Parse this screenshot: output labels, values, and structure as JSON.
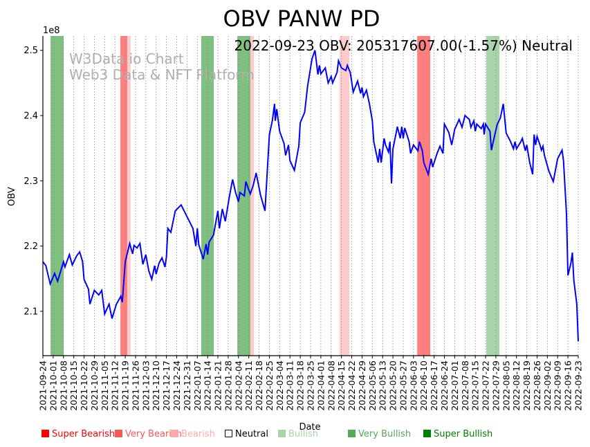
{
  "chart_data": {
    "type": "line",
    "title": "OBV PANW PD",
    "annotation": "2022-09-23 OBV: 205317607.00(-1.57%) Neutral",
    "watermark": [
      "W3Data.io Chart",
      "Web3 Data & NFT Platform"
    ],
    "xlabel": "Date",
    "ylabel": "OBV",
    "y_multiplier": "1e8",
    "ylim": [
      2.032,
      2.522
    ],
    "x_start_date": "2021-09-24",
    "x_unit": "days since 2021-09-24",
    "xlim": [
      0,
      364
    ],
    "yticks": [
      "2.1",
      "2.2",
      "2.3",
      "2.4",
      "2.5"
    ],
    "xticks": [
      "2021-09-24",
      "2021-10-01",
      "2021-10-08",
      "2021-10-15",
      "2021-10-22",
      "2021-10-29",
      "2021-11-05",
      "2021-11-12",
      "2021-11-19",
      "2021-11-26",
      "2021-12-03",
      "2021-12-10",
      "2021-12-17",
      "2021-12-24",
      "2021-12-31",
      "2022-01-07",
      "2022-01-14",
      "2022-01-21",
      "2022-01-28",
      "2022-02-04",
      "2022-02-11",
      "2022-02-18",
      "2022-02-25",
      "2022-03-04",
      "2022-03-11",
      "2022-03-18",
      "2022-03-25",
      "2022-04-01",
      "2022-04-08",
      "2022-04-15",
      "2022-04-22",
      "2022-04-29",
      "2022-05-06",
      "2022-05-13",
      "2022-05-20",
      "2022-05-27",
      "2022-06-03",
      "2022-06-10",
      "2022-06-17",
      "2022-06-24",
      "2022-07-01",
      "2022-07-08",
      "2022-07-15",
      "2022-07-22",
      "2022-07-29",
      "2022-08-05",
      "2022-08-12",
      "2022-08-19",
      "2022-08-26",
      "2022-09-02",
      "2022-09-09",
      "2022-09-16",
      "2022-09-23"
    ],
    "grid": "vertical dotted",
    "series": [
      {
        "name": "OBV",
        "color": "#0000ff",
        "points": [
          [
            0,
            2.176
          ],
          [
            2,
            2.17
          ],
          [
            5,
            2.142
          ],
          [
            8,
            2.158
          ],
          [
            10,
            2.146
          ],
          [
            14,
            2.176
          ],
          [
            15,
            2.168
          ],
          [
            18,
            2.187
          ],
          [
            20,
            2.171
          ],
          [
            23,
            2.185
          ],
          [
            25,
            2.191
          ],
          [
            27,
            2.176
          ],
          [
            28,
            2.149
          ],
          [
            31,
            2.134
          ],
          [
            32,
            2.111
          ],
          [
            35,
            2.132
          ],
          [
            38,
            2.125
          ],
          [
            40,
            2.132
          ],
          [
            42,
            2.096
          ],
          [
            45,
            2.111
          ],
          [
            47,
            2.089
          ],
          [
            50,
            2.111
          ],
          [
            53,
            2.123
          ],
          [
            54,
            2.114
          ],
          [
            56,
            2.176
          ],
          [
            59,
            2.204
          ],
          [
            61,
            2.188
          ],
          [
            62,
            2.201
          ],
          [
            64,
            2.197
          ],
          [
            66,
            2.204
          ],
          [
            68,
            2.172
          ],
          [
            70,
            2.187
          ],
          [
            72,
            2.162
          ],
          [
            74,
            2.149
          ],
          [
            76,
            2.17
          ],
          [
            77,
            2.157
          ],
          [
            79,
            2.174
          ],
          [
            81,
            2.182
          ],
          [
            83,
            2.168
          ],
          [
            84,
            2.183
          ],
          [
            85,
            2.227
          ],
          [
            87,
            2.221
          ],
          [
            90,
            2.254
          ],
          [
            94,
            2.263
          ],
          [
            98,
            2.245
          ],
          [
            102,
            2.227
          ],
          [
            104,
            2.2
          ],
          [
            105,
            2.227
          ],
          [
            106,
            2.202
          ],
          [
            109,
            2.18
          ],
          [
            111,
            2.203
          ],
          [
            112,
            2.187
          ],
          [
            113,
            2.206
          ],
          [
            116,
            2.217
          ],
          [
            119,
            2.254
          ],
          [
            120,
            2.227
          ],
          [
            122,
            2.257
          ],
          [
            124,
            2.238
          ],
          [
            127,
            2.278
          ],
          [
            129,
            2.302
          ],
          [
            131,
            2.282
          ],
          [
            133,
            2.268
          ],
          [
            134,
            2.282
          ],
          [
            137,
            2.277
          ],
          [
            138,
            2.299
          ],
          [
            141,
            2.28
          ],
          [
            143,
            2.293
          ],
          [
            145,
            2.312
          ],
          [
            148,
            2.278
          ],
          [
            151,
            2.254
          ],
          [
            154,
            2.371
          ],
          [
            156,
            2.392
          ],
          [
            157.5,
            2.418
          ],
          [
            158,
            2.392
          ],
          [
            159,
            2.41
          ],
          [
            161,
            2.376
          ],
          [
            164,
            2.357
          ],
          [
            165,
            2.339
          ],
          [
            167,
            2.355
          ],
          [
            168,
            2.331
          ],
          [
            171,
            2.316
          ],
          [
            174,
            2.353
          ],
          [
            175,
            2.389
          ],
          [
            178,
            2.405
          ],
          [
            180,
            2.445
          ],
          [
            183,
            2.487
          ],
          [
            185,
            2.5
          ],
          [
            187,
            2.463
          ],
          [
            188,
            2.477
          ],
          [
            189,
            2.464
          ],
          [
            192,
            2.473
          ],
          [
            194,
            2.45
          ],
          [
            196,
            2.46
          ],
          [
            197,
            2.45
          ],
          [
            200,
            2.466
          ],
          [
            201,
            2.484
          ],
          [
            203,
            2.473
          ],
          [
            206,
            2.469
          ],
          [
            207,
            2.477
          ],
          [
            209,
            2.466
          ],
          [
            211,
            2.436
          ],
          [
            214,
            2.453
          ],
          [
            216,
            2.434
          ],
          [
            217,
            2.443
          ],
          [
            218,
            2.429
          ],
          [
            220,
            2.439
          ],
          [
            222,
            2.418
          ],
          [
            224,
            2.392
          ],
          [
            225,
            2.36
          ],
          [
            228,
            2.328
          ],
          [
            229,
            2.349
          ],
          [
            230,
            2.328
          ],
          [
            232,
            2.365
          ],
          [
            233,
            2.355
          ],
          [
            235,
            2.344
          ],
          [
            236,
            2.36
          ],
          [
            237,
            2.296
          ],
          [
            238,
            2.349
          ],
          [
            240,
            2.371
          ],
          [
            241,
            2.383
          ],
          [
            243,
            2.365
          ],
          [
            244,
            2.383
          ],
          [
            245,
            2.365
          ],
          [
            246,
            2.381
          ],
          [
            249,
            2.36
          ],
          [
            250,
            2.342
          ],
          [
            252,
            2.355
          ],
          [
            255,
            2.346
          ],
          [
            256,
            2.36
          ],
          [
            258,
            2.346
          ],
          [
            259,
            2.328
          ],
          [
            262,
            2.31
          ],
          [
            264,
            2.334
          ],
          [
            265,
            2.321
          ],
          [
            268,
            2.342
          ],
          [
            270,
            2.353
          ],
          [
            272,
            2.342
          ],
          [
            273,
            2.387
          ],
          [
            276,
            2.374
          ],
          [
            278,
            2.355
          ],
          [
            280,
            2.379
          ],
          [
            283,
            2.394
          ],
          [
            285,
            2.382
          ],
          [
            287,
            2.4
          ],
          [
            290,
            2.394
          ],
          [
            291,
            2.382
          ],
          [
            293,
            2.392
          ],
          [
            294,
            2.376
          ],
          [
            295,
            2.387
          ],
          [
            298,
            2.38
          ],
          [
            299.5,
            2.387
          ],
          [
            300,
            2.371
          ],
          [
            301,
            2.387
          ],
          [
            304,
            2.376
          ],
          [
            305,
            2.347
          ],
          [
            307,
            2.368
          ],
          [
            309,
            2.387
          ],
          [
            311,
            2.396
          ],
          [
            313,
            2.418
          ],
          [
            315,
            2.373
          ],
          [
            318,
            2.36
          ],
          [
            320,
            2.349
          ],
          [
            321,
            2.36
          ],
          [
            322,
            2.349
          ],
          [
            325,
            2.36
          ],
          [
            326,
            2.365
          ],
          [
            328,
            2.346
          ],
          [
            329,
            2.355
          ],
          [
            331,
            2.328
          ],
          [
            333,
            2.31
          ],
          [
            334,
            2.371
          ],
          [
            335,
            2.355
          ],
          [
            336,
            2.368
          ],
          [
            338,
            2.355
          ],
          [
            339,
            2.347
          ],
          [
            340,
            2.353
          ],
          [
            341,
            2.339
          ],
          [
            344,
            2.315
          ],
          [
            347,
            2.299
          ],
          [
            350,
            2.334
          ],
          [
            353,
            2.347
          ],
          [
            354,
            2.331
          ],
          [
            356,
            2.249
          ],
          [
            357,
            2.155
          ],
          [
            359,
            2.174
          ],
          [
            360,
            2.19
          ],
          [
            361,
            2.148
          ],
          [
            363,
            2.111
          ],
          [
            364,
            2.054
          ]
        ]
      }
    ],
    "signal_bands": [
      {
        "start": 5.2,
        "end": 14.1,
        "signal": "Very Bullish"
      },
      {
        "start": 52.7,
        "end": 57.4,
        "signal": "Very Bearish"
      },
      {
        "start": 57.4,
        "end": 59.7,
        "signal": "Bearish"
      },
      {
        "start": 107.7,
        "end": 116.2,
        "signal": "Very Bullish"
      },
      {
        "start": 132.2,
        "end": 141.1,
        "signal": "Very Bullish"
      },
      {
        "start": 141.1,
        "end": 143.5,
        "signal": "Bearish"
      },
      {
        "start": 201.8,
        "end": 208.4,
        "signal": "Bearish"
      },
      {
        "start": 254.5,
        "end": 263.4,
        "signal": "Very Bearish"
      },
      {
        "start": 301.5,
        "end": 310.4,
        "signal": "Bullish"
      }
    ],
    "legend": [
      {
        "label": "Super Bearish",
        "color": "#ff0000"
      },
      {
        "label": "Very Bearish",
        "color": "#ff5555"
      },
      {
        "label": "Bearish",
        "color": "#ffaaaa"
      },
      {
        "label": "Neutral",
        "color": "#000000"
      },
      {
        "label": "Bullish",
        "color": "#a8d5a8"
      },
      {
        "label": "Very Bullish",
        "color": "#55aa55"
      },
      {
        "label": "Super Bullish",
        "color": "#008000"
      }
    ],
    "band_colors": {
      "Very Bullish": "#7fbf7f",
      "Bullish": "#a9d4a9",
      "Very Bearish": "#ff7f7f",
      "Bearish": "#ffcccc"
    },
    "legend_placement": "bottom"
  }
}
